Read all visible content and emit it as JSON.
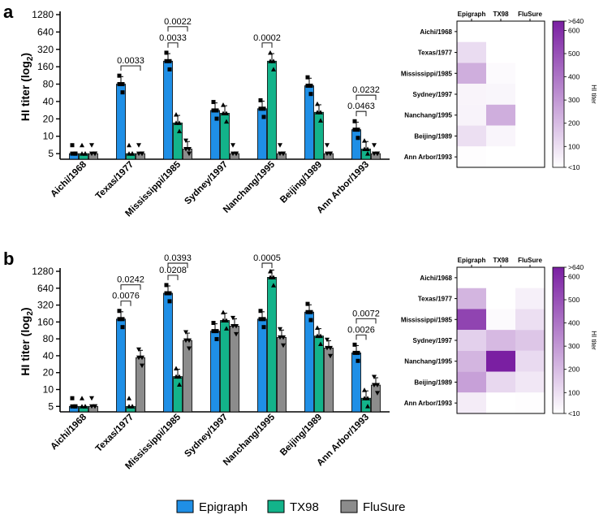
{
  "figure": {
    "colors": {
      "Epigraph": "#1f8fe6",
      "TX98": "#13b38a",
      "FluSure": "#8c8c8c",
      "heat_low": "#ffffff",
      "heat_high": "#7a1fa2"
    },
    "legend": [
      "Epigraph",
      "TX98",
      "FluSure"
    ]
  },
  "chart_data": [
    {
      "type": "bar",
      "panel": "a",
      "title": "",
      "ylabel": "HI titer (log",
      "ylabel_sub": "2",
      "ylabel_close": ")",
      "yscale": "log2",
      "ylim": [
        4,
        1280
      ],
      "yticks": [
        5,
        10,
        20,
        40,
        80,
        160,
        320,
        640,
        1280
      ],
      "categories": [
        "Aichi/1968",
        "Texas/1977",
        "Mississippi/1985",
        "Sydney/1997",
        "Nanchang/1995",
        "Beijing/1989",
        "Ann Arbor/1993"
      ],
      "series": [
        {
          "name": "Epigraph",
          "values": [
            5,
            80,
            200,
            28,
            30,
            75,
            13
          ]
        },
        {
          "name": "TX98",
          "values": [
            5,
            5,
            17,
            25,
            200,
            26,
            6
          ]
        },
        {
          "name": "FluSure",
          "values": [
            5,
            5,
            6,
            5,
            5,
            5,
            5
          ]
        }
      ],
      "annotations": [
        {
          "text": "0.0033",
          "cat": 1,
          "from": "Epigraph",
          "to": "FluSure"
        },
        {
          "text": "0.0033",
          "cat": 2,
          "from": "Epigraph",
          "to": "TX98"
        },
        {
          "text": "0.0022",
          "cat": 2,
          "from": "Epigraph",
          "to": "FluSure"
        },
        {
          "text": "0.0002",
          "cat": 4,
          "from": "Epigraph",
          "to": "TX98"
        },
        {
          "text": "0.0463",
          "cat": 6,
          "from": "Epigraph",
          "to": "TX98"
        },
        {
          "text": "0.0232",
          "cat": 6,
          "from": "Epigraph",
          "to": "FluSure"
        }
      ]
    },
    {
      "type": "bar",
      "panel": "b",
      "title": "",
      "ylabel": "HI titer (log",
      "ylabel_sub": "2",
      "ylabel_close": ")",
      "yscale": "log2",
      "ylim": [
        4,
        1280
      ],
      "yticks": [
        5,
        10,
        20,
        40,
        80,
        160,
        320,
        640,
        1280
      ],
      "categories": [
        "Aichi/1968",
        "Texas/1977",
        "Mississippi/1985",
        "Sydney/1997",
        "Nanchang/1995",
        "Beijing/1989",
        "Ann Arbor/1993"
      ],
      "series": [
        {
          "name": "Epigraph",
          "values": [
            5,
            180,
            520,
            110,
            180,
            240,
            45
          ]
        },
        {
          "name": "TX98",
          "values": [
            5,
            5,
            17,
            170,
            1000,
            90,
            7
          ]
        },
        {
          "name": "FluSure",
          "values": [
            5,
            37,
            75,
            135,
            85,
            55,
            12
          ]
        }
      ],
      "annotations": [
        {
          "text": "0.0076",
          "cat": 1,
          "from": "Epigraph",
          "to": "TX98"
        },
        {
          "text": "0.0242",
          "cat": 1,
          "from": "Epigraph",
          "to": "FluSure"
        },
        {
          "text": "0.0208",
          "cat": 2,
          "from": "Epigraph",
          "to": "TX98"
        },
        {
          "text": "0.0393",
          "cat": 2,
          "from": "Epigraph",
          "to": "FluSure"
        },
        {
          "text": "0.0005",
          "cat": 4,
          "from": "Epigraph",
          "to": "TX98"
        },
        {
          "text": "0.0026",
          "cat": 6,
          "from": "Epigraph",
          "to": "TX98"
        },
        {
          "text": "0.0072",
          "cat": 6,
          "from": "Epigraph",
          "to": "FluSure"
        }
      ]
    },
    {
      "type": "heatmap",
      "panel": "a",
      "columns": [
        "Epigraph",
        "TX98",
        "FluSure"
      ],
      "rows": [
        "Aichi/1968",
        "Texas/1977",
        "Mississippi/1985",
        "Sydney/1997",
        "Nanchang/1995",
        "Beijing/1989",
        "Ann Arbor/1993"
      ],
      "values": [
        [
          5,
          5,
          5
        ],
        [
          80,
          5,
          5
        ],
        [
          200,
          17,
          6
        ],
        [
          28,
          25,
          5
        ],
        [
          30,
          200,
          5
        ],
        [
          75,
          26,
          5
        ],
        [
          13,
          6,
          5
        ]
      ],
      "colorbar": {
        "label": "HI titer",
        "ticks": [
          "<10",
          "100",
          "200",
          "300",
          "400",
          "500",
          "600",
          ">640"
        ],
        "range": [
          10,
          640
        ]
      }
    },
    {
      "type": "heatmap",
      "panel": "b",
      "columns": [
        "Epigraph",
        "TX98",
        "FluSure"
      ],
      "rows": [
        "Aichi/1968",
        "Texas/1977",
        "Mississippi/1985",
        "Sydney/1997",
        "Nanchang/1995",
        "Beijing/1989",
        "Ann Arbor/1993"
      ],
      "values": [
        [
          5,
          5,
          5
        ],
        [
          180,
          5,
          37
        ],
        [
          520,
          17,
          75
        ],
        [
          110,
          170,
          135
        ],
        [
          180,
          1000,
          85
        ],
        [
          240,
          90,
          55
        ],
        [
          45,
          7,
          12
        ]
      ],
      "colorbar": {
        "label": "HI titer",
        "ticks": [
          "<10",
          "100",
          "200",
          "300",
          "400",
          "500",
          "600",
          ">640"
        ],
        "range": [
          10,
          640
        ]
      }
    }
  ]
}
